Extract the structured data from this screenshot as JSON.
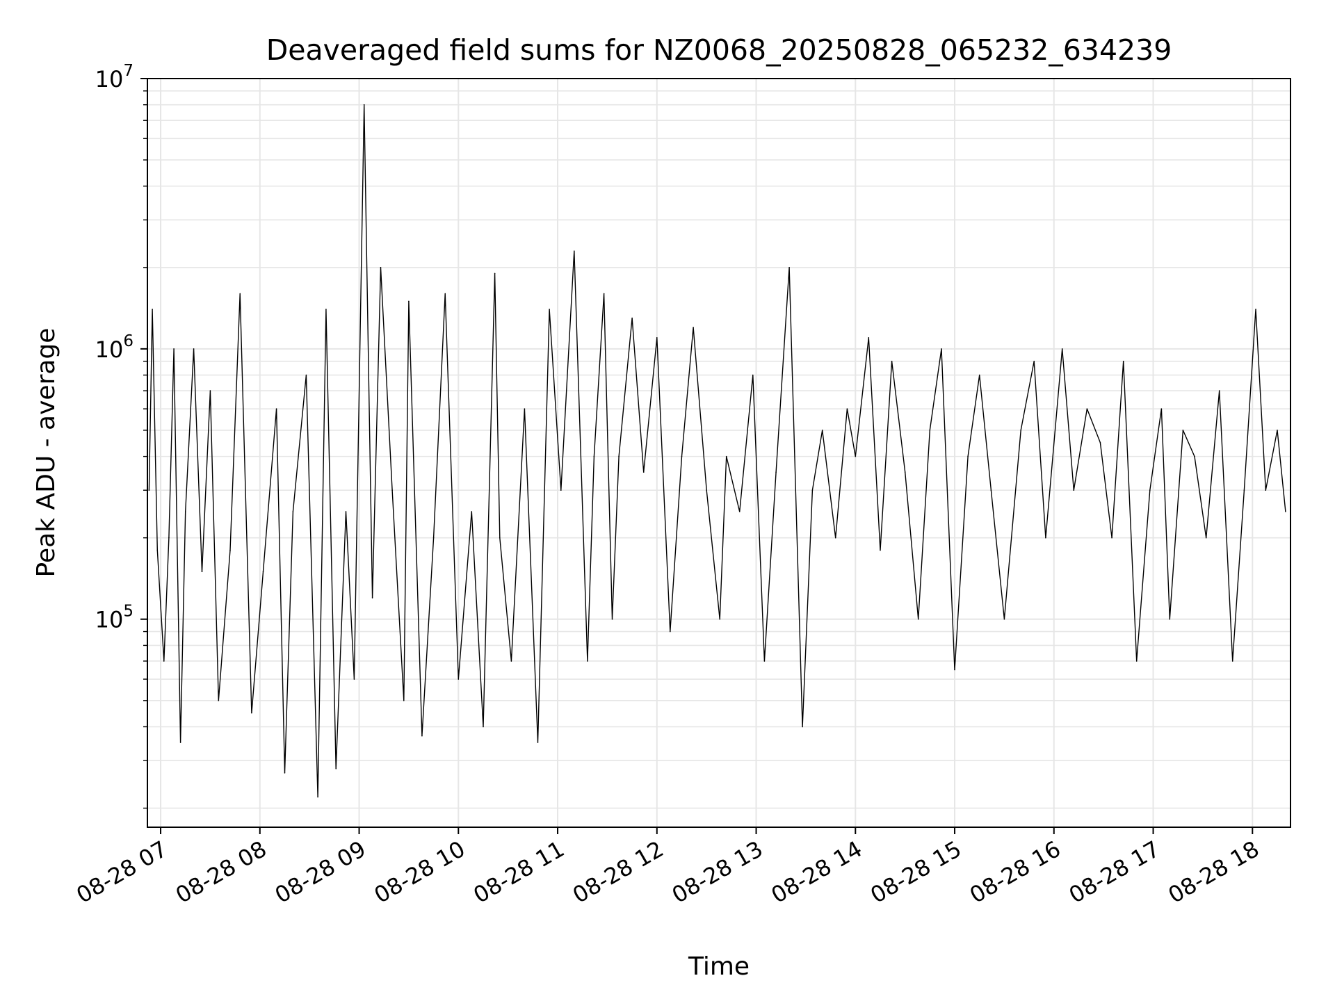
{
  "chart_data": {
    "type": "line",
    "title": "Deaveraged field sums for NZ0068_20250828_065232_634239",
    "xlabel": "Time",
    "ylabel": "Peak ADU - average",
    "x_unit": "datetime",
    "xlim": [
      "2025-08-28 06:52",
      "2025-08-28 18:23"
    ],
    "x_ticks": [
      "2025-08-28 07:00",
      "2025-08-28 08:00",
      "2025-08-28 09:00",
      "2025-08-28 10:00",
      "2025-08-28 11:00",
      "2025-08-28 12:00",
      "2025-08-28 13:00",
      "2025-08-28 14:00",
      "2025-08-28 15:00",
      "2025-08-28 16:00",
      "2025-08-28 17:00",
      "2025-08-28 18:00"
    ],
    "x_tick_labels": [
      "08-28 07",
      "08-28 08",
      "08-28 09",
      "08-28 10",
      "08-28 11",
      "08-28 12",
      "08-28 13",
      "08-28 14",
      "08-28 15",
      "08-28 16",
      "08-28 17",
      "08-28 18"
    ],
    "y_scale": "log",
    "ylim": [
      17000,
      10000000
    ],
    "y_tick_bases": [
      "10",
      "10",
      "10"
    ],
    "y_tick_exponents": [
      "5",
      "6",
      "7"
    ],
    "grid": true,
    "colors": {
      "line": "#000000",
      "grid": "#e6e6e6",
      "axes": "#000000",
      "background": "#ffffff"
    },
    "series": [
      {
        "x": [
          "2025-08-28 06:53",
          "2025-08-28 06:55",
          "2025-08-28 06:58",
          "2025-08-28 07:02",
          "2025-08-28 07:05",
          "2025-08-28 07:08",
          "2025-08-28 07:12",
          "2025-08-28 07:15",
          "2025-08-28 07:20",
          "2025-08-28 07:25",
          "2025-08-28 07:30",
          "2025-08-28 07:35",
          "2025-08-28 07:42",
          "2025-08-28 07:48",
          "2025-08-28 07:55",
          "2025-08-28 08:02",
          "2025-08-28 08:10",
          "2025-08-28 08:15",
          "2025-08-28 08:20",
          "2025-08-28 08:28",
          "2025-08-28 08:35",
          "2025-08-28 08:40",
          "2025-08-28 08:46",
          "2025-08-28 08:52",
          "2025-08-28 08:57",
          "2025-08-28 09:03",
          "2025-08-28 09:08",
          "2025-08-28 09:13",
          "2025-08-28 09:20",
          "2025-08-28 09:27",
          "2025-08-28 09:30",
          "2025-08-28 09:38",
          "2025-08-28 09:45",
          "2025-08-28 09:52",
          "2025-08-28 10:00",
          "2025-08-28 10:08",
          "2025-08-28 10:15",
          "2025-08-28 10:22",
          "2025-08-28 10:25",
          "2025-08-28 10:32",
          "2025-08-28 10:40",
          "2025-08-28 10:48",
          "2025-08-28 10:55",
          "2025-08-28 11:02",
          "2025-08-28 11:10",
          "2025-08-28 11:18",
          "2025-08-28 11:22",
          "2025-08-28 11:28",
          "2025-08-28 11:33",
          "2025-08-28 11:37",
          "2025-08-28 11:45",
          "2025-08-28 11:52",
          "2025-08-28 12:00",
          "2025-08-28 12:08",
          "2025-08-28 12:15",
          "2025-08-28 12:22",
          "2025-08-28 12:30",
          "2025-08-28 12:38",
          "2025-08-28 12:42",
          "2025-08-28 12:50",
          "2025-08-28 12:58",
          "2025-08-28 13:05",
          "2025-08-28 13:12",
          "2025-08-28 13:20",
          "2025-08-28 13:28",
          "2025-08-28 13:34",
          "2025-08-28 13:40",
          "2025-08-28 13:48",
          "2025-08-28 13:55",
          "2025-08-28 14:00",
          "2025-08-28 14:08",
          "2025-08-28 14:15",
          "2025-08-28 14:22",
          "2025-08-28 14:30",
          "2025-08-28 14:38",
          "2025-08-28 14:45",
          "2025-08-28 14:52",
          "2025-08-28 15:00",
          "2025-08-28 15:08",
          "2025-08-28 15:15",
          "2025-08-28 15:22",
          "2025-08-28 15:30",
          "2025-08-28 15:40",
          "2025-08-28 15:48",
          "2025-08-28 15:55",
          "2025-08-28 16:05",
          "2025-08-28 16:12",
          "2025-08-28 16:20",
          "2025-08-28 16:28",
          "2025-08-28 16:35",
          "2025-08-28 16:42",
          "2025-08-28 16:50",
          "2025-08-28 16:58",
          "2025-08-28 17:05",
          "2025-08-28 17:10",
          "2025-08-28 17:18",
          "2025-08-28 17:25",
          "2025-08-28 17:32",
          "2025-08-28 17:40",
          "2025-08-28 17:48",
          "2025-08-28 17:55",
          "2025-08-28 18:02",
          "2025-08-28 18:08",
          "2025-08-28 18:15",
          "2025-08-28 18:20"
        ],
        "y": [
          300000,
          1400000,
          180000,
          70000,
          200000,
          1000000,
          35000,
          250000,
          1000000,
          150000,
          700000,
          50000,
          180000,
          1600000,
          45000,
          150000,
          600000,
          27000,
          250000,
          800000,
          22000,
          1400000,
          28000,
          250000,
          60000,
          8000000,
          120000,
          2000000,
          300000,
          50000,
          1500000,
          37000,
          200000,
          1600000,
          60000,
          250000,
          40000,
          1900000,
          200000,
          70000,
          600000,
          35000,
          1400000,
          300000,
          2300000,
          70000,
          400000,
          1600000,
          100000,
          400000,
          1300000,
          350000,
          1100000,
          90000,
          400000,
          1200000,
          300000,
          100000,
          400000,
          250000,
          800000,
          70000,
          350000,
          2000000,
          40000,
          300000,
          500000,
          200000,
          600000,
          400000,
          1100000,
          180000,
          900000,
          350000,
          100000,
          500000,
          1000000,
          65000,
          400000,
          800000,
          300000,
          100000,
          500000,
          900000,
          200000,
          1000000,
          300000,
          600000,
          450000,
          200000,
          900000,
          70000,
          300000,
          600000,
          100000,
          500000,
          400000,
          200000,
          700000,
          70000,
          300000,
          1400000,
          300000,
          500000,
          250000
        ]
      }
    ]
  }
}
